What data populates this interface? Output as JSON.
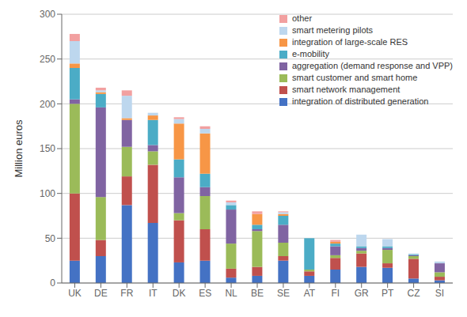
{
  "chart_data": {
    "type": "bar",
    "stacked": true,
    "categories": [
      "UK",
      "DE",
      "FR",
      "IT",
      "DK",
      "ES",
      "NL",
      "BE",
      "SE",
      "AT",
      "FI",
      "GR",
      "PT",
      "CZ",
      "SI"
    ],
    "series": [
      {
        "name": "integration of distributed generation",
        "color": "#4472c4",
        "values": [
          25,
          30,
          87,
          67,
          23,
          25,
          6,
          8,
          25,
          8,
          15,
          18,
          17,
          5,
          3
        ]
      },
      {
        "name": "smart network management",
        "color": "#c0504d",
        "values": [
          75,
          18,
          32,
          65,
          47,
          35,
          10,
          10,
          5,
          5,
          13,
          15,
          5,
          22,
          4
        ]
      },
      {
        "name": "smart customer and smart home",
        "color": "#9bbb59",
        "values": [
          100,
          48,
          33,
          15,
          8,
          37,
          28,
          40,
          15,
          2,
          3,
          3,
          15,
          3,
          5
        ]
      },
      {
        "name": "aggregation (demand response and VPP)",
        "color": "#8064a2",
        "values": [
          5,
          100,
          30,
          7,
          40,
          10,
          38,
          2,
          20,
          0,
          10,
          3,
          2,
          1,
          10
        ]
      },
      {
        "name": "e-mobility",
        "color": "#4bacc6",
        "values": [
          35,
          15,
          0,
          28,
          20,
          15,
          5,
          5,
          10,
          35,
          3,
          2,
          2,
          1,
          0
        ]
      },
      {
        "name": "integration of large-scale RES",
        "color": "#f79646",
        "values": [
          5,
          2,
          2,
          5,
          40,
          45,
          0,
          12,
          2,
          0,
          2,
          0,
          0,
          0,
          0
        ]
      },
      {
        "name": "smart metering pilots",
        "color": "#bdd7ee",
        "values": [
          25,
          2,
          25,
          3,
          5,
          5,
          3,
          0,
          2,
          0,
          0,
          13,
          8,
          1,
          2
        ]
      },
      {
        "name": "other",
        "color": "#f2a0a0",
        "values": [
          8,
          3,
          6,
          0,
          2,
          3,
          2,
          3,
          1,
          0,
          2,
          0,
          0,
          0,
          0
        ]
      }
    ],
    "y_label": "Million euros",
    "ylim": [
      0,
      300
    ],
    "yticks": [
      0,
      50,
      100,
      150,
      200,
      250,
      300
    ],
    "grid": true,
    "legend": "upper right"
  }
}
